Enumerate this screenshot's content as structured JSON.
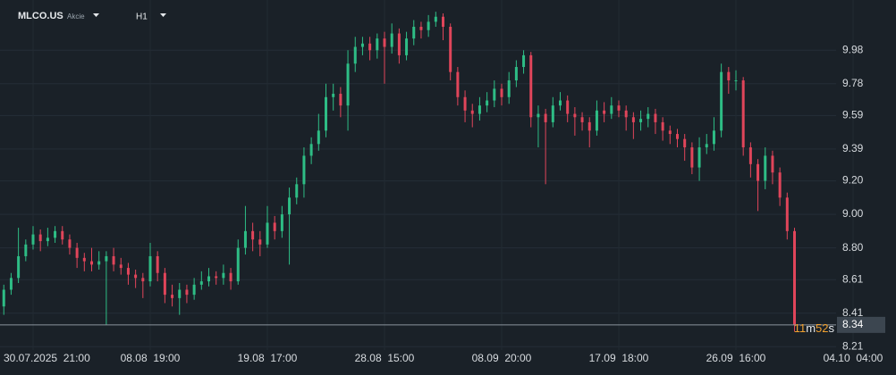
{
  "header": {
    "symbol": "MLCO.US",
    "asset_class": "Akcie",
    "timeframe": "H1"
  },
  "chart_data": {
    "type": "candlestick",
    "up_color": "#2ebd85",
    "down_color": "#e0455a",
    "grid": true,
    "ylim": [
      8.19,
      10.28
    ],
    "yticks": [
      9.98,
      9.78,
      9.59,
      9.39,
      {
        "value": 9.2,
        "label": "9.20"
      },
      {
        "value": 9,
        "label": "9.00"
      },
      {
        "value": 8.8,
        "label": "8.80"
      },
      8.61,
      8.41,
      8.21
    ],
    "current_price": 8.34,
    "countdown": [
      "11",
      "m",
      "52",
      "s"
    ],
    "categories": [
      null,
      null,
      null,
      null,
      "30.07.2025  21:00",
      null,
      null,
      null,
      null,
      null,
      null,
      null,
      null,
      null,
      null,
      null,
      null,
      null,
      null,
      null,
      "08.08  19:00",
      null,
      null,
      null,
      null,
      null,
      null,
      null,
      null,
      null,
      null,
      null,
      null,
      null,
      null,
      null,
      "19.08  17:00",
      null,
      null,
      null,
      null,
      null,
      null,
      null,
      null,
      null,
      null,
      null,
      null,
      null,
      null,
      null,
      "28.08  15:00",
      null,
      null,
      null,
      null,
      null,
      null,
      null,
      null,
      null,
      null,
      null,
      null,
      null,
      null,
      null,
      "08.09  20:00",
      null,
      null,
      null,
      null,
      null,
      null,
      null,
      null,
      null,
      null,
      null,
      null,
      null,
      null,
      null,
      "17.09  18:00",
      null,
      null,
      null,
      null,
      null,
      null,
      null,
      null,
      null,
      null,
      null,
      null,
      null,
      null,
      null,
      "26.09  16:00",
      null,
      null,
      null,
      null,
      null,
      null,
      null,
      null,
      null,
      null,
      null,
      null,
      null,
      null,
      null,
      "04.10  04:00"
    ],
    "open": [
      8.45,
      8.55,
      8.62,
      8.75,
      8.82,
      8.88,
      8.84,
      8.86,
      8.9,
      8.85,
      8.8,
      8.74,
      8.72,
      8.7,
      8.72,
      8.75,
      8.7,
      8.68,
      8.64,
      8.62,
      8.6,
      8.75,
      8.65,
      8.52,
      8.5,
      8.55,
      8.52,
      8.58,
      8.6,
      8.63,
      8.62,
      8.65,
      8.6,
      8.8,
      8.9,
      8.85,
      8.82,
      8.95,
      8.9,
      9.0,
      9.1,
      9.18,
      9.35,
      9.42,
      9.5,
      9.7,
      9.72,
      9.65,
      9.9,
      10.0,
      10.02,
      9.98,
      10.05,
      10.0,
      10.08,
      9.95,
      10.05,
      10.12,
      10.1,
      10.15,
      10.18,
      10.12,
      9.85,
      9.7,
      9.62,
      9.6,
      9.65,
      9.68,
      9.75,
      9.7,
      9.8,
      9.88,
      9.95,
      9.58,
      9.6,
      9.55,
      9.65,
      9.68,
      9.6,
      9.58,
      9.55,
      9.5,
      9.62,
      9.6,
      9.65,
      9.62,
      9.58,
      9.55,
      9.57,
      9.6,
      9.55,
      9.5,
      9.48,
      9.45,
      9.4,
      9.28,
      9.4,
      9.42,
      9.5,
      9.85,
      9.8,
      9.8,
      9.4,
      9.3,
      9.2,
      9.35,
      9.25,
      9.1,
      8.9,
      null,
      null,
      null,
      null,
      null,
      null,
      null,
      null
    ],
    "high": [
      8.58,
      8.65,
      8.92,
      8.85,
      8.93,
      8.91,
      8.92,
      8.93,
      8.93,
      8.88,
      8.83,
      8.77,
      8.8,
      8.78,
      8.78,
      8.8,
      8.74,
      8.71,
      8.67,
      8.65,
      8.83,
      8.78,
      8.68,
      8.58,
      8.59,
      8.58,
      8.62,
      8.66,
      8.68,
      8.66,
      8.7,
      8.68,
      8.85,
      9.05,
      8.95,
      8.9,
      9.05,
      8.99,
      9.05,
      9.16,
      9.22,
      9.4,
      9.46,
      9.6,
      9.78,
      9.78,
      9.76,
      9.98,
      10.06,
      10.06,
      10.06,
      10.08,
      10.09,
      10.14,
      10.11,
      10.09,
      10.16,
      10.15,
      10.19,
      10.21,
      10.2,
      10.14,
      9.88,
      9.74,
      9.66,
      9.7,
      9.73,
      9.8,
      9.78,
      9.85,
      9.92,
      9.98,
      9.97,
      9.65,
      9.63,
      9.7,
      9.73,
      9.71,
      9.64,
      9.61,
      9.58,
      9.68,
      9.67,
      9.7,
      9.68,
      9.65,
      9.61,
      9.62,
      9.64,
      9.63,
      9.58,
      9.53,
      9.51,
      9.48,
      9.43,
      9.46,
      9.48,
      9.58,
      9.9,
      9.88,
      9.86,
      9.82,
      9.43,
      9.33,
      9.4,
      9.38,
      9.28,
      9.13,
      8.92,
      null,
      null,
      null,
      null,
      null,
      null,
      null,
      null
    ],
    "low": [
      8.4,
      8.52,
      8.59,
      8.72,
      8.79,
      8.78,
      8.81,
      8.83,
      8.82,
      8.76,
      8.68,
      8.66,
      8.66,
      8.67,
      8.34,
      8.66,
      8.64,
      8.58,
      8.56,
      8.5,
      8.57,
      8.6,
      8.47,
      8.45,
      8.4,
      8.47,
      8.49,
      8.55,
      8.57,
      8.58,
      8.58,
      8.55,
      8.58,
      8.76,
      8.78,
      8.75,
      8.8,
      8.85,
      8.86,
      8.7,
      9.06,
      9.1,
      9.3,
      9.38,
      9.46,
      9.62,
      9.58,
      9.5,
      9.85,
      9.95,
      9.92,
      9.93,
      9.78,
      9.96,
      9.9,
      9.92,
      10.01,
      10.05,
      10.06,
      10.12,
      10.04,
      9.8,
      9.65,
      9.55,
      9.52,
      9.56,
      9.61,
      9.64,
      9.65,
      9.66,
      9.76,
      9.84,
      9.52,
      9.4,
      9.18,
      9.52,
      9.62,
      9.55,
      9.47,
      9.5,
      9.4,
      9.47,
      9.55,
      9.57,
      9.58,
      9.5,
      9.45,
      9.5,
      9.52,
      9.48,
      9.44,
      9.42,
      9.4,
      9.32,
      9.24,
      9.2,
      9.36,
      9.38,
      9.46,
      9.72,
      9.74,
      9.35,
      9.22,
      9.02,
      9.15,
      9.18,
      9.05,
      8.85,
      8.3,
      null,
      null,
      null,
      null,
      null,
      null,
      null,
      null
    ],
    "close": [
      8.55,
      8.62,
      8.75,
      8.82,
      8.88,
      8.84,
      8.86,
      8.9,
      8.85,
      8.8,
      8.74,
      8.72,
      8.7,
      8.72,
      8.75,
      8.7,
      8.68,
      8.64,
      8.62,
      8.6,
      8.75,
      8.65,
      8.52,
      8.5,
      8.55,
      8.52,
      8.58,
      8.6,
      8.63,
      8.62,
      8.65,
      8.6,
      8.8,
      8.9,
      8.85,
      8.82,
      8.95,
      8.9,
      9.0,
      9.1,
      9.18,
      9.35,
      9.42,
      9.5,
      9.7,
      9.72,
      9.65,
      9.9,
      10.0,
      10.02,
      9.98,
      10.05,
      10.0,
      10.08,
      9.95,
      10.05,
      10.12,
      10.1,
      10.15,
      10.18,
      10.12,
      9.85,
      9.7,
      9.62,
      9.6,
      9.65,
      9.68,
      9.75,
      9.7,
      9.8,
      9.88,
      9.95,
      9.58,
      9.6,
      9.55,
      9.65,
      9.68,
      9.6,
      9.58,
      9.55,
      9.5,
      9.62,
      9.6,
      9.65,
      9.62,
      9.58,
      9.55,
      9.57,
      9.6,
      9.55,
      9.5,
      9.48,
      9.45,
      9.4,
      9.28,
      9.4,
      9.42,
      9.5,
      9.85,
      9.8,
      9.8,
      9.4,
      9.3,
      9.2,
      9.35,
      9.25,
      9.1,
      8.9,
      8.34,
      null,
      null,
      null,
      null,
      null,
      null,
      null,
      null
    ]
  }
}
